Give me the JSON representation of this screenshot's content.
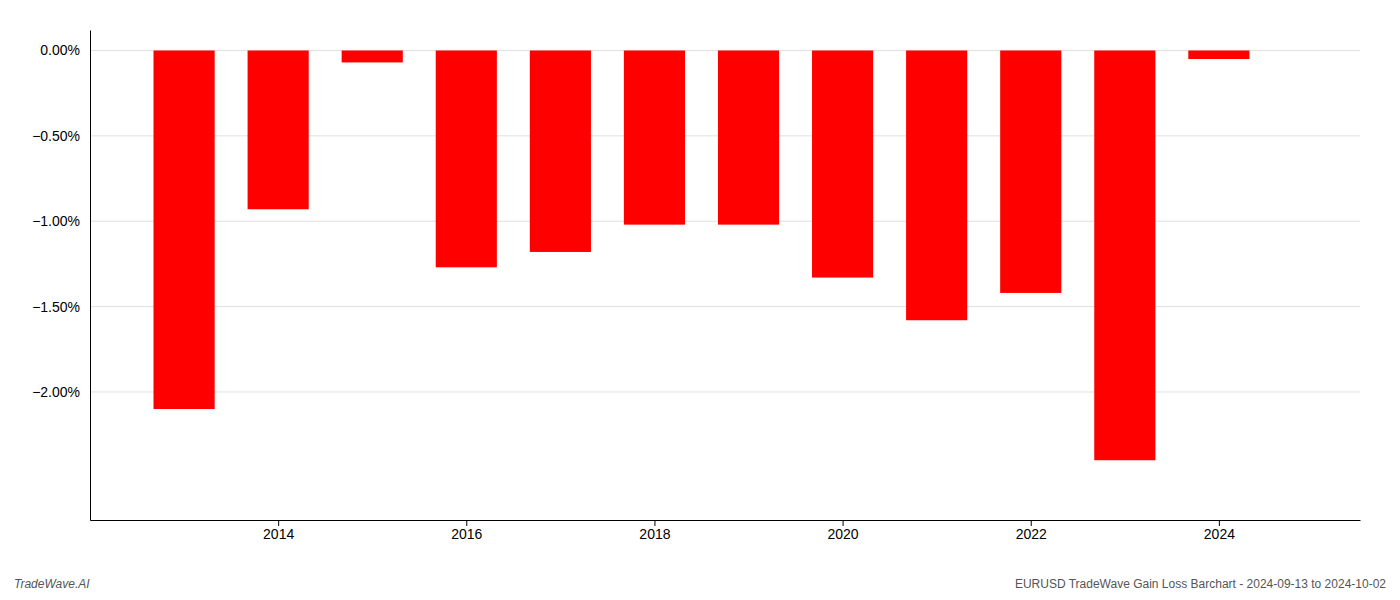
{
  "chart_data": {
    "type": "bar",
    "x": [
      2013,
      2014,
      2015,
      2016,
      2017,
      2018,
      2019,
      2020,
      2021,
      2022,
      2023,
      2024
    ],
    "values": [
      -2.1,
      -0.93,
      -0.07,
      -1.27,
      -1.18,
      -1.02,
      -1.02,
      -1.33,
      -1.58,
      -1.42,
      -2.4,
      -0.05
    ],
    "color": "#ff0000",
    "xlim": [
      2012.0,
      2025.5
    ],
    "xticks": [
      2014,
      2016,
      2018,
      2020,
      2022,
      2024
    ],
    "ylim": [
      -2.75,
      0.12
    ],
    "yticks": [
      {
        "value": 0.0,
        "label": "0.00%"
      },
      {
        "value": -0.5,
        "label": "−0.50%"
      },
      {
        "value": -1.0,
        "label": "−1.00%"
      },
      {
        "value": -1.5,
        "label": "−1.50%"
      },
      {
        "value": -2.0,
        "label": "−2.00%"
      }
    ],
    "grid": true,
    "annotations": [
      "TradeWave.AI",
      "EURUSD TradeWave Gain Loss Barchart - 2024-09-13 to 2024-10-02"
    ]
  }
}
